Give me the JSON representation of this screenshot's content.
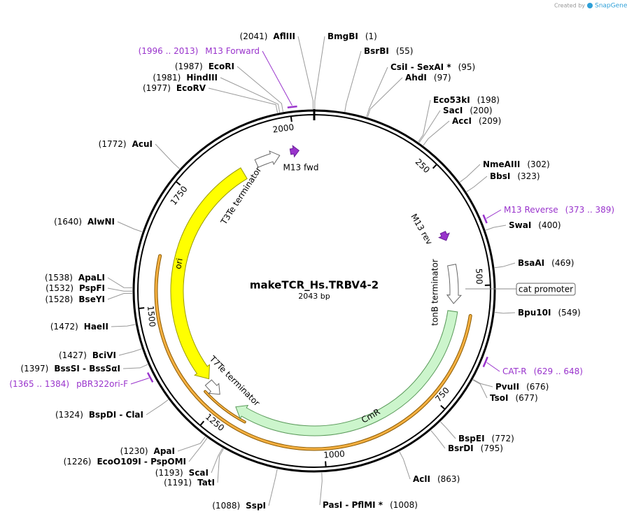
{
  "watermark": {
    "prefix": "Created by",
    "brand": "SnapGene"
  },
  "map": {
    "name": "makeTCR_Hs.TRBV4-2",
    "length": "2043 bp"
  },
  "ticks": [
    250,
    500,
    750,
    1000,
    1250,
    1500,
    1750,
    2000
  ],
  "enzymes": [
    {
      "name": "AflIII",
      "site": "(2041)"
    },
    {
      "name": "BmgBI",
      "site": "(1)"
    },
    {
      "name": "BsrBI",
      "site": "(55)"
    },
    {
      "name": "CsiI - SexAI *",
      "site": "(95)"
    },
    {
      "name": "AhdI",
      "site": "(97)"
    },
    {
      "name": "Eco53kI",
      "site": "(198)"
    },
    {
      "name": "SacI",
      "site": "(200)"
    },
    {
      "name": "AccI",
      "site": "(209)"
    },
    {
      "name": "NmeAIII",
      "site": "(302)"
    },
    {
      "name": "BbsI",
      "site": "(323)"
    },
    {
      "name": "SwaI",
      "site": "(400)"
    },
    {
      "name": "BsaAI",
      "site": "(469)"
    },
    {
      "name": "Bpu10I",
      "site": "(549)"
    },
    {
      "name": "PvuII",
      "site": "(676)"
    },
    {
      "name": "TsoI",
      "site": "(677)"
    },
    {
      "name": "BspEI",
      "site": "(772)"
    },
    {
      "name": "BsrDI",
      "site": "(795)"
    },
    {
      "name": "AclI",
      "site": "(863)"
    },
    {
      "name": "PasI - PflMI *",
      "site": "(1008)"
    },
    {
      "name": "SspI",
      "site": "(1088)"
    },
    {
      "name": "TatI",
      "site": "(1191)"
    },
    {
      "name": "ScaI",
      "site": "(1193)"
    },
    {
      "name": "EcoO109I - PspOMI",
      "site": "(1226)"
    },
    {
      "name": "ApaI",
      "site": "(1230)"
    },
    {
      "name": "BspDI - ClaI",
      "site": "(1324)"
    },
    {
      "name": "BssSI - BssSαI",
      "site": "(1397)"
    },
    {
      "name": "BciVI",
      "site": "(1427)"
    },
    {
      "name": "HaeII",
      "site": "(1472)"
    },
    {
      "name": "BseYI",
      "site": "(1528)"
    },
    {
      "name": "PspFI",
      "site": "(1532)"
    },
    {
      "name": "ApaLI",
      "site": "(1538)"
    },
    {
      "name": "AlwNI",
      "site": "(1640)"
    },
    {
      "name": "AcuI",
      "site": "(1772)"
    },
    {
      "name": "EcoRV",
      "site": "(1977)"
    },
    {
      "name": "HindIII",
      "site": "(1981)"
    },
    {
      "name": "EcoRI",
      "site": "(1987)"
    }
  ],
  "primers": [
    {
      "name": "M13 Forward",
      "range": "(1996 .. 2013)"
    },
    {
      "name": "M13 Reverse",
      "range": "(373 .. 389)"
    },
    {
      "name": "CAT-R",
      "range": "(629 .. 648)"
    },
    {
      "name": "pBR322ori-F",
      "range": "(1365 .. 1384)"
    }
  ],
  "features": [
    {
      "name": "cat promoter"
    },
    {
      "name": "T3Te terminator"
    },
    {
      "name": "M13 fwd"
    },
    {
      "name": "M13 rev"
    },
    {
      "name": "tonB terminator"
    },
    {
      "name": "CmR"
    },
    {
      "name": "T7Te terminator"
    },
    {
      "name": "ori"
    }
  ]
}
